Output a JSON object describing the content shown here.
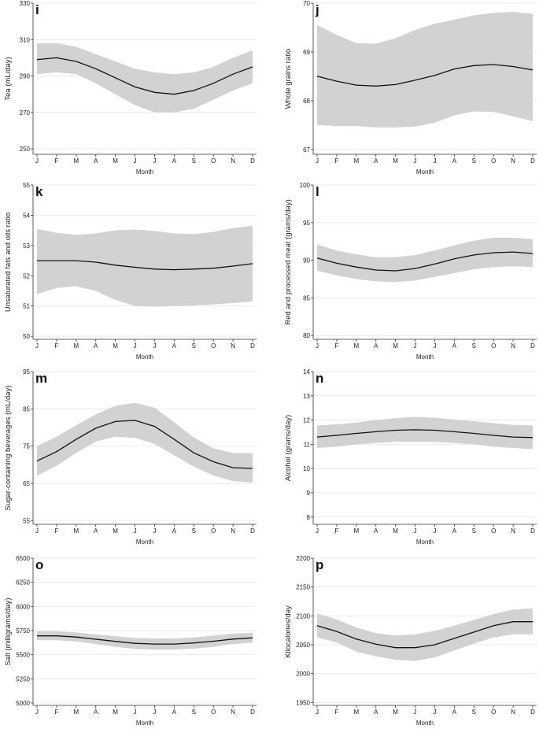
{
  "chart_data": [
    {
      "type": "line",
      "letter": "i",
      "categories": [
        "J",
        "F",
        "M",
        "A",
        "M",
        "J",
        "J",
        "A",
        "S",
        "O",
        "N",
        "D"
      ],
      "xlabel": "Month",
      "ylabel": "Tea (mL/day)",
      "ylim": [
        247,
        330
      ],
      "yticks": [
        250,
        270,
        290,
        310,
        330
      ],
      "values": [
        299,
        300,
        298,
        294,
        289,
        284,
        281,
        280,
        282,
        286,
        291,
        295
      ],
      "lower": [
        291,
        292,
        291,
        286,
        280,
        274,
        270,
        270,
        272,
        277,
        282,
        286
      ],
      "upper": [
        308,
        308,
        306,
        302,
        298,
        294,
        292,
        291,
        292,
        295,
        300,
        304
      ]
    },
    {
      "type": "line",
      "letter": "j",
      "categories": [
        "J",
        "F",
        "M",
        "A",
        "M",
        "J",
        "J",
        "A",
        "S",
        "O",
        "N",
        "D"
      ],
      "xlabel": "Month",
      "ylabel": "Whole grains ratio",
      "ylim": [
        66.9,
        70.0
      ],
      "yticks": [
        67,
        68,
        69,
        70
      ],
      "values": [
        68.5,
        68.4,
        68.32,
        68.3,
        68.33,
        68.42,
        68.52,
        68.65,
        68.72,
        68.74,
        68.7,
        68.63
      ],
      "lower": [
        67.5,
        67.48,
        67.48,
        67.45,
        67.45,
        67.47,
        67.55,
        67.7,
        67.78,
        67.77,
        67.68,
        67.58
      ],
      "upper": [
        69.55,
        69.35,
        69.18,
        69.17,
        69.28,
        69.45,
        69.58,
        69.66,
        69.75,
        69.8,
        69.82,
        69.78
      ]
    },
    {
      "type": "line",
      "letter": "k",
      "categories": [
        "J",
        "F",
        "M",
        "A",
        "M",
        "J",
        "J",
        "A",
        "S",
        "O",
        "N",
        "D"
      ],
      "xlabel": "Month",
      "ylabel": "Unsaturated fats and oils ratio",
      "ylim": [
        49.9,
        55.0
      ],
      "yticks": [
        50,
        51,
        52,
        53,
        54,
        55
      ],
      "values": [
        52.5,
        52.5,
        52.5,
        52.45,
        52.35,
        52.28,
        52.22,
        52.2,
        52.22,
        52.25,
        52.32,
        52.4
      ],
      "lower": [
        51.4,
        51.6,
        51.65,
        51.5,
        51.2,
        51.0,
        50.98,
        51.0,
        51.02,
        51.05,
        51.1,
        51.15
      ],
      "upper": [
        53.55,
        53.42,
        53.35,
        53.4,
        53.5,
        53.53,
        53.48,
        53.4,
        53.38,
        53.45,
        53.58,
        53.65
      ]
    },
    {
      "type": "line",
      "letter": "l",
      "categories": [
        "J",
        "F",
        "M",
        "A",
        "M",
        "J",
        "J",
        "A",
        "S",
        "O",
        "N",
        "D"
      ],
      "xlabel": "Month",
      "ylabel": "Red and processed meat (grams/day)",
      "ylim": [
        79.5,
        100
      ],
      "yticks": [
        80,
        85,
        90,
        95,
        100
      ],
      "values": [
        90.3,
        89.6,
        89.1,
        88.7,
        88.6,
        88.9,
        89.5,
        90.2,
        90.7,
        91.0,
        91.1,
        90.9
      ],
      "lower": [
        88.6,
        88.0,
        87.5,
        87.2,
        87.1,
        87.3,
        87.8,
        88.3,
        88.8,
        89.1,
        89.2,
        89.1
      ],
      "upper": [
        92.1,
        91.3,
        90.8,
        90.4,
        90.4,
        90.7,
        91.3,
        92.0,
        92.6,
        93.0,
        93.0,
        92.8
      ]
    },
    {
      "type": "line",
      "letter": "m",
      "categories": [
        "J",
        "F",
        "M",
        "A",
        "M",
        "J",
        "J",
        "A",
        "S",
        "O",
        "N",
        "D"
      ],
      "xlabel": "Month",
      "ylabel": "Sugar-containing beverages (mL/day)",
      "ylim": [
        54,
        95
      ],
      "yticks": [
        55,
        65,
        75,
        85,
        95
      ],
      "values": [
        71,
        73.5,
        76.8,
        79.8,
        81.6,
        81.9,
        80.3,
        76.8,
        73.2,
        70.8,
        69.2,
        69
      ],
      "lower": [
        67,
        69.7,
        73.2,
        76.2,
        77.5,
        77.2,
        75.6,
        72.5,
        69.5,
        67.1,
        65.6,
        65.2
      ],
      "upper": [
        75,
        77.5,
        80.6,
        83.5,
        85.8,
        86.6,
        85.3,
        81.4,
        77.3,
        74.4,
        73.2,
        73.1
      ]
    },
    {
      "type": "line",
      "letter": "n",
      "categories": [
        "J",
        "F",
        "M",
        "A",
        "M",
        "J",
        "J",
        "A",
        "S",
        "O",
        "N",
        "D"
      ],
      "xlabel": "Month",
      "ylabel": "Alcohol (grams/day)",
      "ylim": [
        7.7,
        14
      ],
      "yticks": [
        8,
        9,
        10,
        11,
        12,
        13,
        14
      ],
      "values": [
        11.3,
        11.37,
        11.45,
        11.52,
        11.58,
        11.6,
        11.58,
        11.52,
        11.45,
        11.37,
        11.3,
        11.28
      ],
      "lower": [
        10.85,
        10.9,
        11.0,
        11.05,
        11.1,
        11.1,
        11.1,
        11.05,
        11.0,
        10.9,
        10.85,
        10.8
      ],
      "upper": [
        11.78,
        11.82,
        11.9,
        12.0,
        12.08,
        12.13,
        12.1,
        12.02,
        11.95,
        11.87,
        11.8,
        11.78
      ]
    },
    {
      "type": "line",
      "letter": "o",
      "categories": [
        "J",
        "F",
        "M",
        "A",
        "M",
        "J",
        "J",
        "A",
        "S",
        "O",
        "N",
        "D"
      ],
      "xlabel": "Month",
      "ylabel": "Salt (milligrams/day)",
      "ylim": [
        4975,
        6500
      ],
      "yticks": [
        5000,
        5250,
        5500,
        5750,
        6000,
        6250,
        6500
      ],
      "values": [
        5695,
        5695,
        5683,
        5660,
        5638,
        5618,
        5610,
        5610,
        5622,
        5640,
        5662,
        5675
      ],
      "lower": [
        5650,
        5650,
        5638,
        5610,
        5580,
        5560,
        5552,
        5552,
        5562,
        5582,
        5610,
        5625
      ],
      "upper": [
        5742,
        5742,
        5730,
        5710,
        5692,
        5675,
        5668,
        5668,
        5678,
        5698,
        5718,
        5728
      ]
    },
    {
      "type": "line",
      "letter": "p",
      "categories": [
        "J",
        "F",
        "M",
        "A",
        "M",
        "J",
        "J",
        "A",
        "S",
        "O",
        "N",
        "D"
      ],
      "xlabel": "Month",
      "ylabel": "Kilocalories/day",
      "ylim": [
        1945,
        2200
      ],
      "yticks": [
        1950,
        2000,
        2050,
        2100,
        2150,
        2200
      ],
      "values": [
        2083,
        2073,
        2060,
        2051,
        2045,
        2045,
        2050,
        2061,
        2072,
        2083,
        2090,
        2090
      ],
      "lower": [
        2063,
        2054,
        2038,
        2030,
        2024,
        2022,
        2028,
        2040,
        2052,
        2063,
        2068,
        2068
      ],
      "upper": [
        2104,
        2094,
        2080,
        2070,
        2066,
        2068,
        2074,
        2083,
        2093,
        2103,
        2111,
        2113
      ]
    }
  ]
}
